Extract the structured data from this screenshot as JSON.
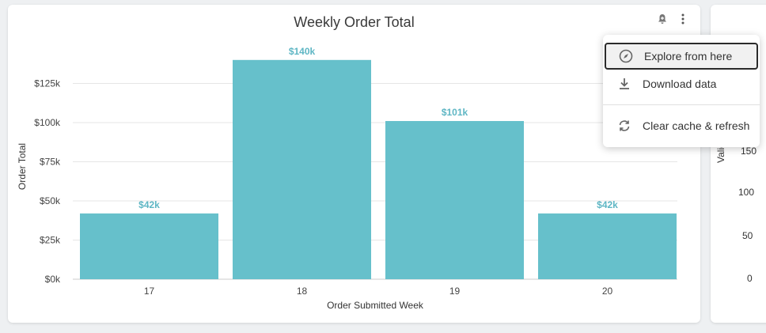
{
  "main_tile": {
    "title": "Weekly Order Total"
  },
  "menu": {
    "items": [
      {
        "label": "Explore from here",
        "icon": "compass-icon"
      },
      {
        "label": "Download data",
        "icon": "download-icon"
      },
      {
        "label": "Clear cache & refresh",
        "icon": "refresh-icon"
      }
    ]
  },
  "right_tile": {
    "ylabel": "Valid Order Co",
    "ticks": [
      "150",
      "100",
      "50",
      "0"
    ]
  },
  "chart_data": {
    "type": "bar",
    "title": "Weekly Order Total",
    "xlabel": "Order Submitted Week",
    "ylabel": "Order Total",
    "categories": [
      "17",
      "18",
      "19",
      "20"
    ],
    "values": [
      42000,
      140000,
      101000,
      42000
    ],
    "data_labels": [
      "$42k",
      "$140k",
      "$101k",
      "$42k"
    ],
    "y_ticks": [
      "$0k",
      "$25k",
      "$50k",
      "$75k",
      "$100k",
      "$125k"
    ],
    "ylim": [
      0,
      150000
    ],
    "grid": true,
    "bar_color": "#66c0cb",
    "label_color": "#5eb6c4"
  }
}
